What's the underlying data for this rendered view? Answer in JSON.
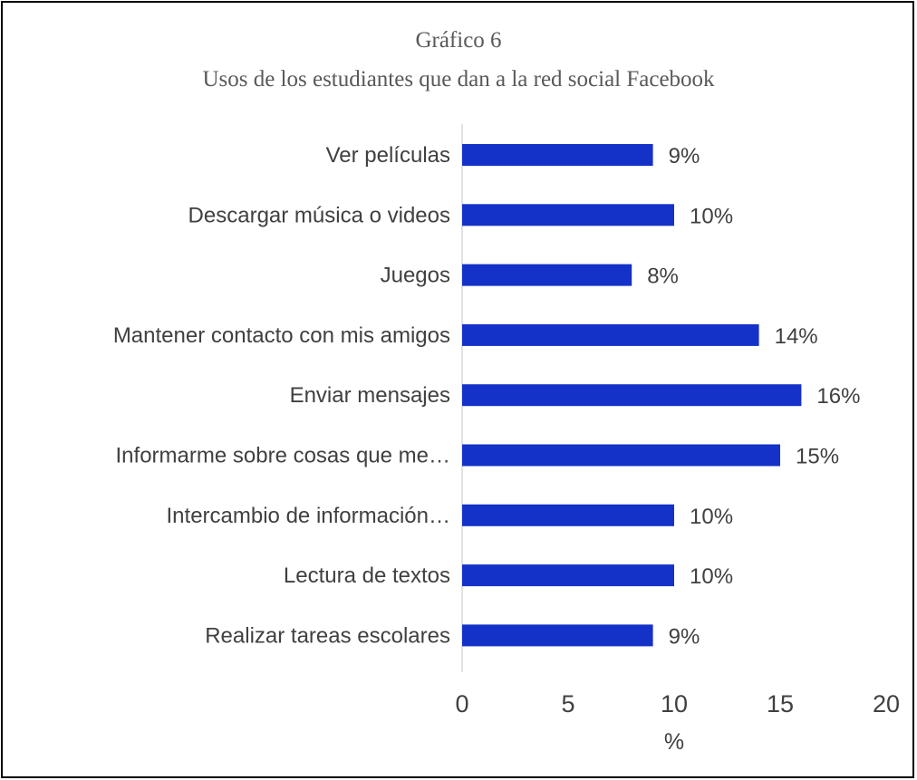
{
  "chart_data": {
    "type": "bar",
    "orientation": "horizontal",
    "title": "Gráfico 6",
    "subtitle": "Usos de los estudiantes que dan a la red social Facebook",
    "categories": [
      "Ver películas",
      "Descargar música o videos",
      "Juegos",
      "Mantener contacto con mis amigos",
      "Enviar mensajes",
      "Informarme sobre cosas que me…",
      "Intercambio de información…",
      "Lectura de textos",
      "Realizar tareas escolares"
    ],
    "values": [
      9,
      10,
      8,
      14,
      16,
      15,
      10,
      10,
      9
    ],
    "data_labels": [
      "9%",
      "10%",
      "8%",
      "14%",
      "16%",
      "15%",
      "10%",
      "10%",
      "9%"
    ],
    "xlabel": "%",
    "xlim": [
      0,
      20
    ],
    "xticks": [
      "0",
      "5",
      "10",
      "15",
      "20"
    ],
    "bar_color": "#1432C8",
    "grid": false
  }
}
